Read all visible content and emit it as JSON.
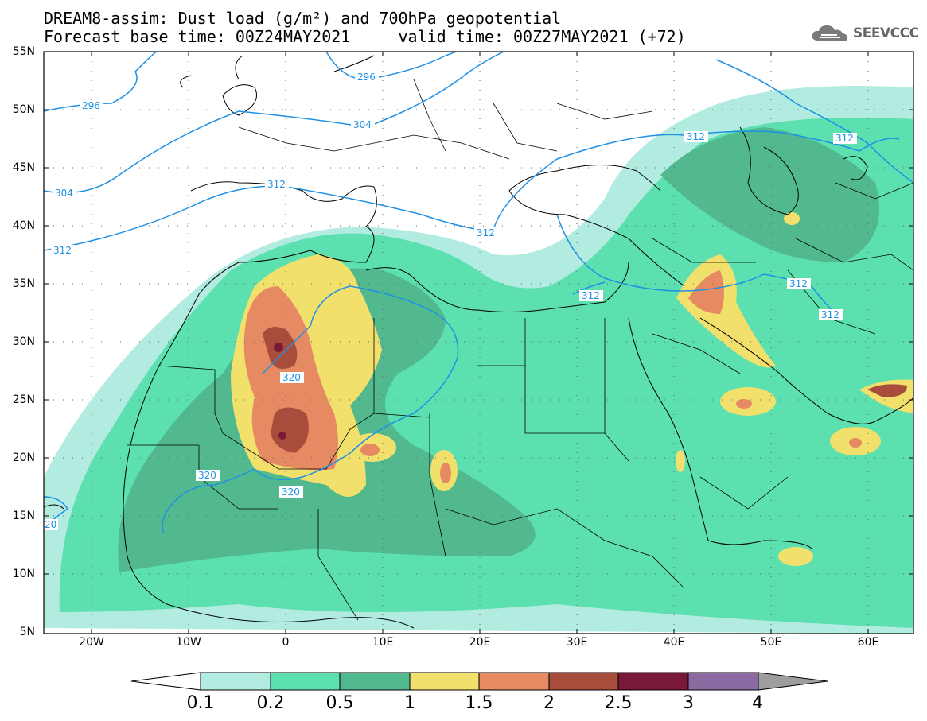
{
  "header": {
    "title_line1": "DREAM8-assim: Dust load (g/m²) and 700hPa geopotential",
    "title_line2": "Forecast base time: 00Z24MAY2021     valid time: 00Z27MAY2021 (+72)"
  },
  "logo": {
    "text": "SEEVCCC",
    "icon": "cloud-icon"
  },
  "map": {
    "latitude_labels": [
      "55N",
      "50N",
      "45N",
      "40N",
      "35N",
      "30N",
      "25N",
      "20N",
      "15N",
      "10N",
      "5N"
    ],
    "longitude_labels": [
      "20W",
      "10W",
      "0",
      "10E",
      "20E",
      "30E",
      "40E",
      "50E",
      "60E"
    ],
    "contour_labels": [
      "296",
      "296",
      "304",
      "304",
      "312",
      "312",
      "312",
      "312",
      "312",
      "312",
      "320",
      "320",
      "320",
      "20"
    ],
    "contour_color": "#1e90e6",
    "land_boundary_color": "#000000"
  },
  "colorbar": {
    "labels": [
      "0.1",
      "0.2",
      "0.5",
      "1",
      "1.5",
      "2",
      "2.5",
      "3",
      "4"
    ],
    "colors": [
      "#b2ece0",
      "#5de0b0",
      "#52b98f",
      "#f2e06c",
      "#e58a62",
      "#a84c3c",
      "#7a1838",
      "#8a6aa0",
      "#9e9e9e"
    ]
  }
}
